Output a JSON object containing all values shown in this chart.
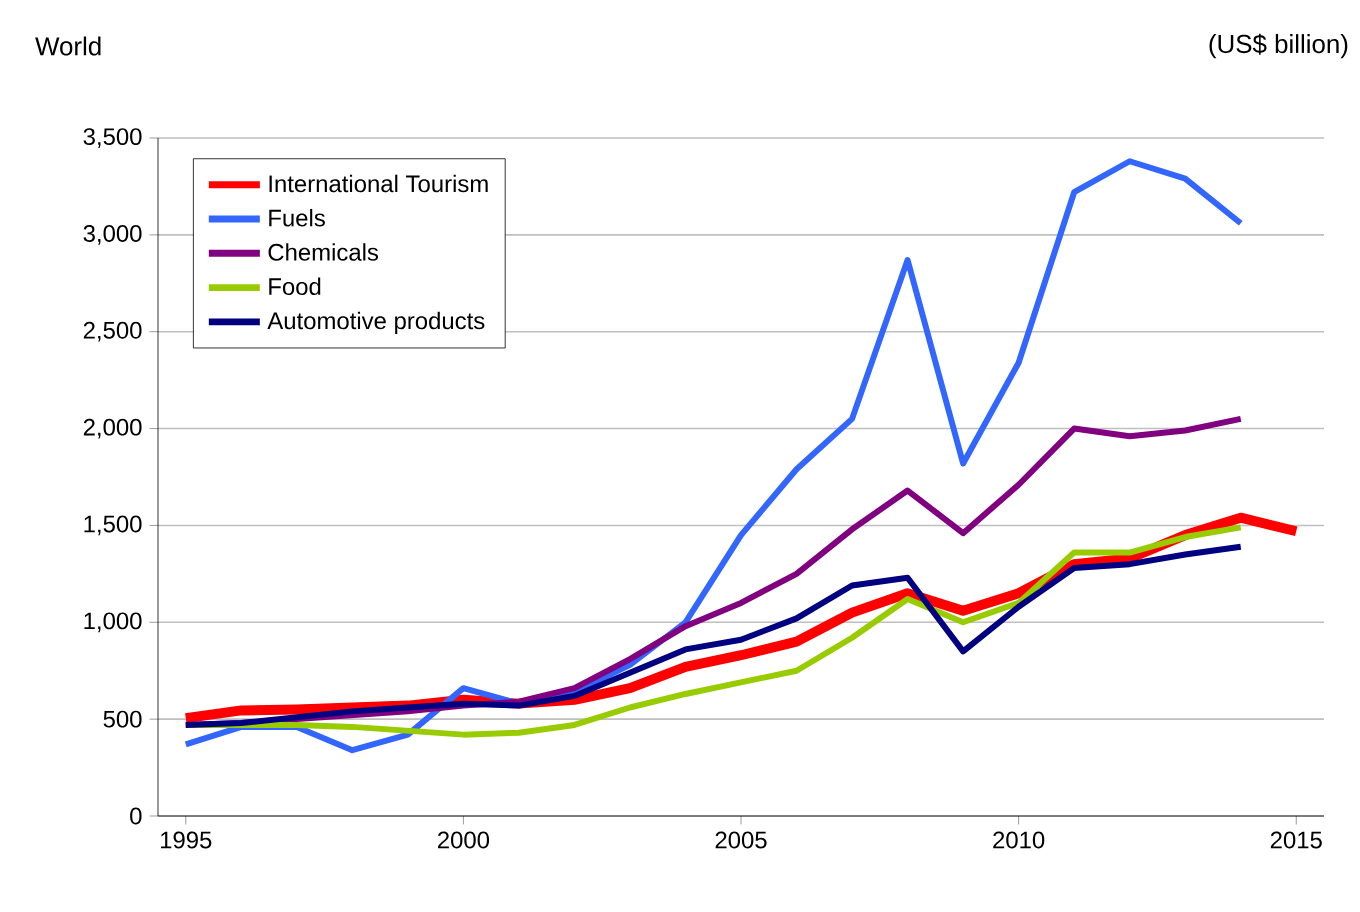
{
  "chart_data": {
    "type": "line",
    "title": "World",
    "ylabel": "(US$ billion)",
    "x": [
      1995,
      1996,
      1997,
      1998,
      1999,
      2000,
      2001,
      2002,
      2003,
      2004,
      2005,
      2006,
      2007,
      2008,
      2009,
      2010,
      2011,
      2012,
      2013,
      2014,
      2015
    ],
    "series": [
      {
        "name": "International Tourism",
        "color": "#ff0000",
        "values": [
          505,
          545,
          550,
          560,
          570,
          600,
          580,
          600,
          660,
          770,
          830,
          900,
          1050,
          1150,
          1060,
          1150,
          1300,
          1330,
          1450,
          1540,
          1470
        ]
      },
      {
        "name": "Fuels",
        "color": "#3366ff",
        "values": [
          370,
          460,
          460,
          340,
          420,
          660,
          580,
          640,
          780,
          1000,
          1450,
          1790,
          2050,
          2870,
          1820,
          2340,
          3220,
          3380,
          3290,
          3060,
          null
        ]
      },
      {
        "name": "Chemicals",
        "color": "#800080",
        "values": [
          470,
          480,
          500,
          520,
          540,
          570,
          590,
          660,
          810,
          980,
          1100,
          1250,
          1480,
          1680,
          1460,
          1710,
          2000,
          1960,
          1990,
          2050,
          null
        ]
      },
      {
        "name": "Food",
        "color": "#99cc00",
        "values": [
          470,
          470,
          470,
          460,
          440,
          420,
          430,
          470,
          560,
          630,
          690,
          750,
          920,
          1120,
          1000,
          1100,
          1360,
          1360,
          1440,
          1490,
          null
        ]
      },
      {
        "name": "Automotive products",
        "color": "#000080",
        "values": [
          470,
          480,
          510,
          540,
          560,
          580,
          570,
          620,
          740,
          860,
          910,
          1020,
          1190,
          1230,
          850,
          1080,
          1280,
          1300,
          1350,
          1390,
          null
        ]
      }
    ],
    "xlim": [
      1994.5,
      2015.5
    ],
    "xticks": [
      1995,
      2000,
      2005,
      2010,
      2015
    ],
    "ylim": [
      0,
      3500
    ],
    "yticks": [
      0,
      500,
      {
        "value": 1000,
        "label": "1,000"
      },
      {
        "value": 1500,
        "label": "1,500"
      },
      {
        "value": 2000,
        "label": "2,000"
      },
      {
        "value": 2500,
        "label": "2,500"
      },
      {
        "value": 3000,
        "label": "3,000"
      },
      {
        "value": 3500,
        "label": "3,500"
      }
    ],
    "grid": "y",
    "legend": "top left",
    "marker": "none",
    "line_style": "solid"
  }
}
